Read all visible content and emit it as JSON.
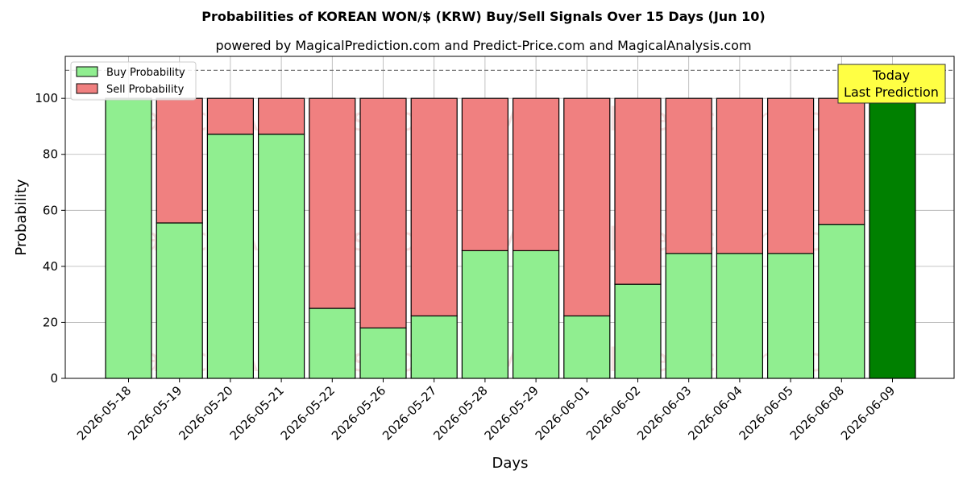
{
  "chart_data": {
    "type": "bar",
    "stacked": true,
    "title": "Probabilities of KOREAN WON/$ (KRW) Buy/Sell Signals Over 15 Days (Jun 10)",
    "subtitle": "powered by MagicalPrediction.com and Predict-Price.com and MagicalAnalysis.com",
    "xlabel": "Days",
    "ylabel": "Probability",
    "ylim": [
      0,
      115
    ],
    "yticks": [
      0,
      20,
      40,
      60,
      80,
      100
    ],
    "grid": true,
    "legend_position": "top-left",
    "reference_line": 110,
    "categories": [
      "2026-05-18",
      "2026-05-19",
      "2026-05-20",
      "2026-05-21",
      "2026-05-22",
      "2026-05-26",
      "2026-05-27",
      "2026-05-28",
      "2026-05-29",
      "2026-06-01",
      "2026-06-02",
      "2026-06-03",
      "2026-06-04",
      "2026-06-05",
      "2026-06-08",
      "2026-06-09"
    ],
    "series": [
      {
        "name": "Buy Probability",
        "color": "#90ee90",
        "values": [
          100,
          55.5,
          87.2,
          87.2,
          25,
          18,
          22.3,
          45.6,
          45.6,
          22.3,
          33.6,
          44.6,
          44.6,
          44.6,
          55,
          100
        ]
      },
      {
        "name": "Sell Probability",
        "color": "#f08080",
        "values": [
          0,
          44.5,
          12.8,
          12.8,
          75,
          82,
          77.7,
          54.4,
          54.4,
          77.7,
          66.4,
          55.4,
          55.4,
          55.4,
          45,
          0
        ]
      }
    ],
    "highlight": {
      "index": 15,
      "color": "#008000"
    },
    "annotation": {
      "line1": "Today",
      "line2": "Last Prediction",
      "bg": "#ffff44"
    },
    "watermarks": [
      "MagicalAnalysis.com",
      "MagicalPrediction.com"
    ]
  }
}
